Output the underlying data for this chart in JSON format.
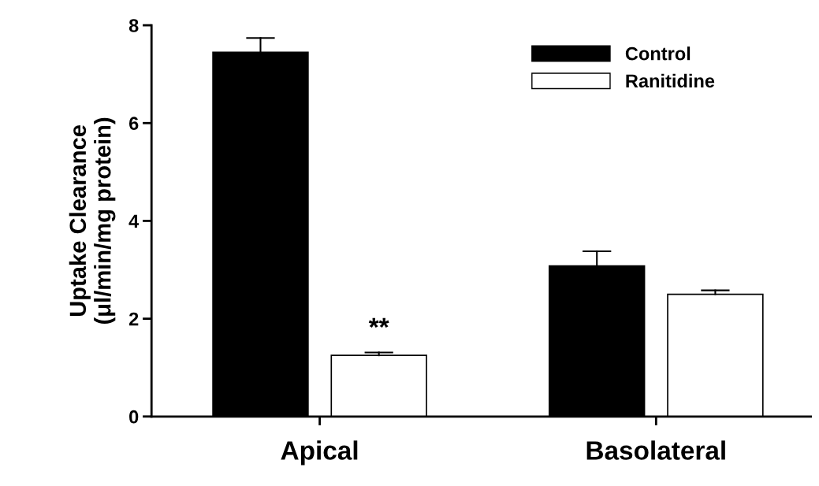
{
  "chart_data": {
    "type": "bar",
    "ylabel": "Uptake Clearance\n(μl/min/mg protein)",
    "categories": [
      "Apical",
      "Basolateral"
    ],
    "series": [
      {
        "name": "Control",
        "color": "#000000",
        "values": [
          7.45,
          3.08
        ],
        "errors": [
          [
            7.45,
            7.74
          ],
          [
            3.08,
            3.38
          ]
        ]
      },
      {
        "name": "Ranitidine",
        "color": "#ffffff",
        "values": [
          1.25,
          2.5
        ],
        "errors": [
          [
            1.25,
            1.31
          ],
          [
            2.5,
            2.58
          ]
        ]
      }
    ],
    "annotations": [
      "**"
    ],
    "ylim": [
      0,
      8
    ],
    "yticks": [
      0,
      2,
      4,
      6,
      8
    ],
    "grid": false,
    "legend": "top right"
  }
}
